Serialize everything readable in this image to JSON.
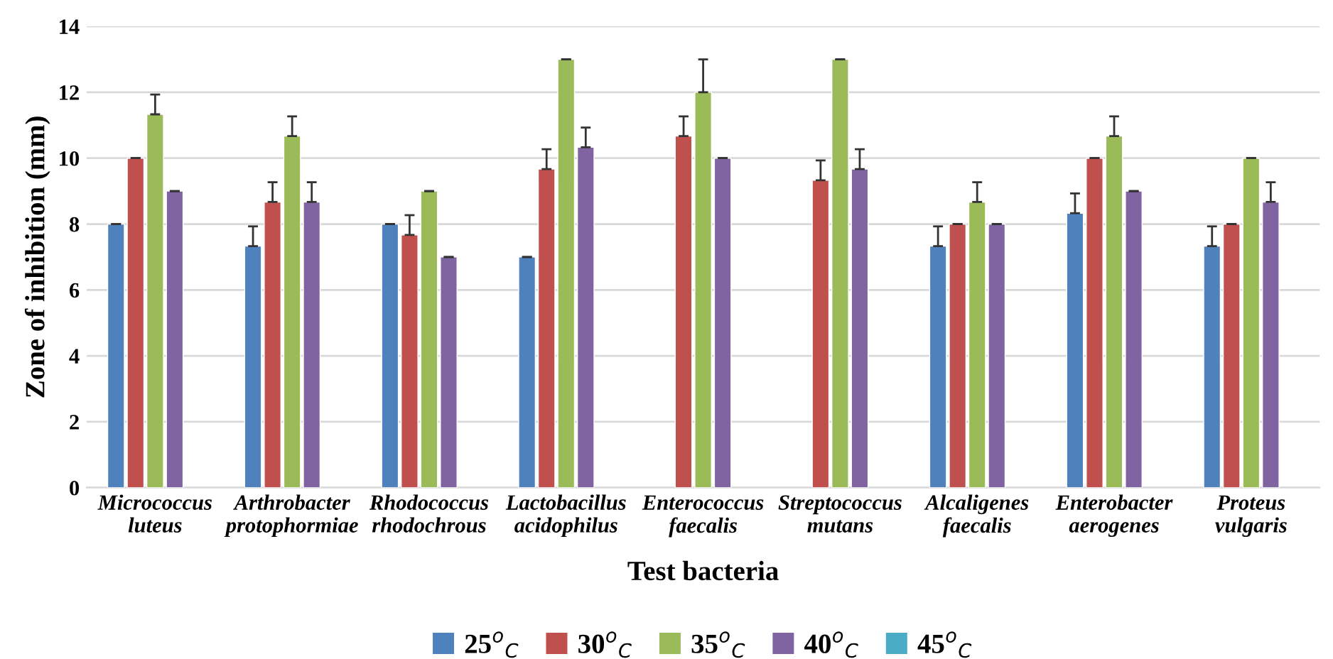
{
  "chart_data": {
    "type": "bar",
    "xlabel": "Test bacteria",
    "ylabel": "Zone of inhibition (mm)",
    "categories": [
      "Micrococcus\nluteus",
      "Arthrobacter\nprotophormiae",
      "Rhodococcus\nrhodochrous",
      "Lactobacillus\nacidophilus",
      "Enterococcus\nfaecalis",
      "Streptococcus\nmutans",
      "Alcaligenes\nfaecalis",
      "Enterobacter\naerogenes",
      "Proteus\nvulgaris"
    ],
    "series": [
      {
        "name": "25$^{o}$$_{C}$",
        "color": "#4f81bd",
        "values": [
          8,
          7.33,
          8,
          7,
          null,
          null,
          7.33,
          8.33,
          7.33
        ],
        "errors": [
          0,
          [
            7.33,
            7.93
          ],
          0,
          0,
          null,
          null,
          [
            7.33,
            7.93
          ],
          [
            8.33,
            8.93
          ],
          [
            7.33,
            7.93
          ]
        ]
      },
      {
        "name": "30$^{o}$$_{C}$",
        "color": "#c0504d",
        "values": [
          10,
          8.67,
          7.67,
          9.67,
          10.67,
          9.33,
          8,
          10,
          8
        ],
        "errors": [
          0,
          [
            8.67,
            9.27
          ],
          [
            7.67,
            8.27
          ],
          [
            9.67,
            10.27
          ],
          [
            10.67,
            11.27
          ],
          [
            9.33,
            9.93
          ],
          0,
          0,
          0
        ]
      },
      {
        "name": "35$^{o}$$_{C}$",
        "color": "#9bbb59",
        "values": [
          11.33,
          10.67,
          9,
          13,
          12,
          13,
          8.67,
          10.67,
          10
        ],
        "errors": [
          [
            11.33,
            11.93
          ],
          [
            10.67,
            11.27
          ],
          0,
          0,
          [
            12,
            13
          ],
          0,
          [
            8.67,
            9.27
          ],
          [
            10.67,
            11.27
          ],
          0
        ]
      },
      {
        "name": "40$^{o}$$_{C}$",
        "color": "#8064a2",
        "values": [
          9,
          8.67,
          7,
          10.33,
          10,
          9.67,
          8,
          9,
          8.67
        ],
        "errors": [
          0,
          [
            8.67,
            9.27
          ],
          0,
          [
            10.33,
            10.93
          ],
          0,
          [
            9.67,
            10.27
          ],
          0,
          0,
          [
            8.67,
            9.27
          ]
        ]
      },
      {
        "name": "45$^{o}$$_{C}$",
        "color": "#4bacc6",
        "values": [
          null,
          null,
          null,
          null,
          null,
          null,
          null,
          null,
          null
        ]
      }
    ],
    "ylim": [
      0,
      14
    ],
    "yticks": [
      0,
      2,
      4,
      6,
      8,
      10,
      12,
      14
    ],
    "grid": "y",
    "legend": "bottom"
  }
}
